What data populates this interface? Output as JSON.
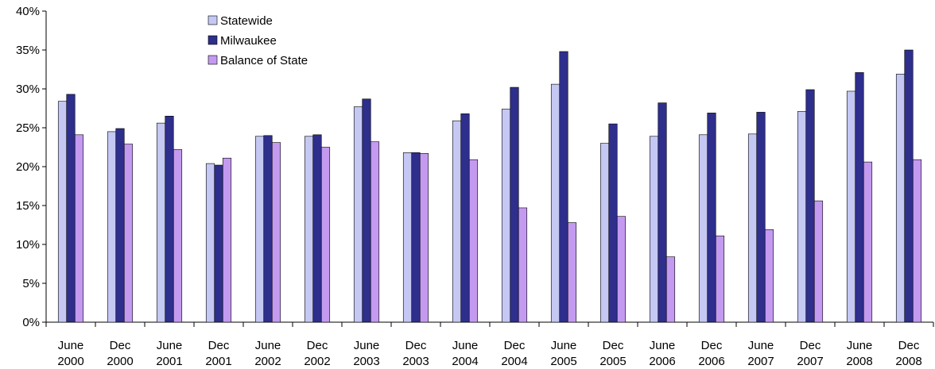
{
  "chart_data": {
    "type": "bar",
    "title": "",
    "xlabel": "",
    "ylabel": "",
    "ylim": [
      0,
      40
    ],
    "y_ticks": [
      "0%",
      "5%",
      "10%",
      "15%",
      "20%",
      "25%",
      "30%",
      "35%",
      "40%"
    ],
    "categories": [
      [
        "June",
        "2000"
      ],
      [
        "Dec",
        "2000"
      ],
      [
        "June",
        "2001"
      ],
      [
        "Dec",
        "2001"
      ],
      [
        "June",
        "2002"
      ],
      [
        "Dec",
        "2002"
      ],
      [
        "June",
        "2003"
      ],
      [
        "Dec",
        "2003"
      ],
      [
        "June",
        "2004"
      ],
      [
        "Dec",
        "2004"
      ],
      [
        "June",
        "2005"
      ],
      [
        "Dec",
        "2005"
      ],
      [
        "June",
        "2006"
      ],
      [
        "Dec",
        "2006"
      ],
      [
        "June",
        "2007"
      ],
      [
        "Dec",
        "2007"
      ],
      [
        "June",
        "2008"
      ],
      [
        "Dec",
        "2008"
      ]
    ],
    "series": [
      {
        "name": "Statewide",
        "color": "#c4c8f2",
        "values": [
          28.4,
          24.5,
          25.6,
          20.4,
          23.9,
          23.9,
          27.7,
          21.8,
          25.9,
          27.4,
          30.6,
          23.0,
          23.9,
          24.1,
          24.2,
          27.1,
          29.7,
          31.9
        ]
      },
      {
        "name": "Milwaukee",
        "color": "#2e2e8c",
        "values": [
          29.3,
          24.9,
          26.5,
          20.2,
          24.0,
          24.1,
          28.7,
          21.8,
          26.8,
          30.2,
          34.8,
          25.5,
          28.2,
          26.9,
          27.0,
          29.9,
          32.1,
          35.0
        ]
      },
      {
        "name": "Balance of State",
        "color": "#c49af0",
        "values": [
          24.1,
          22.9,
          22.2,
          21.1,
          23.1,
          22.5,
          23.2,
          21.7,
          20.9,
          14.7,
          12.8,
          13.6,
          8.4,
          11.1,
          11.9,
          15.6,
          20.6,
          20.9
        ]
      }
    ],
    "legend_position": "top-left",
    "grid": false
  }
}
